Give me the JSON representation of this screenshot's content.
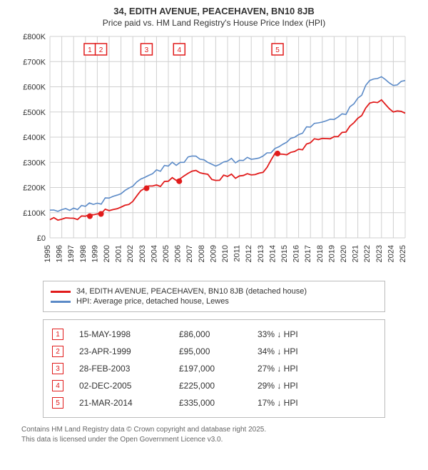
{
  "title": "34, EDITH AVENUE, PEACEHAVEN, BN10 8JB",
  "subtitle": "Price paid vs. HM Land Registry's House Price Index (HPI)",
  "chart": {
    "type": "line",
    "x_years": [
      1995,
      1996,
      1997,
      1998,
      1999,
      2000,
      2001,
      2002,
      2003,
      2004,
      2005,
      2006,
      2007,
      2008,
      2009,
      2010,
      2011,
      2012,
      2013,
      2014,
      2015,
      2016,
      2017,
      2018,
      2019,
      2020,
      2021,
      2022,
      2023,
      2024,
      2025
    ],
    "ylim": [
      0,
      800000
    ],
    "y_ticks": [
      0,
      100000,
      200000,
      300000,
      400000,
      500000,
      600000,
      700000,
      800000
    ],
    "y_tick_labels": [
      "£0",
      "£100K",
      "£200K",
      "£300K",
      "£400K",
      "£500K",
      "£600K",
      "£700K",
      "£800K"
    ],
    "grid_color": "#d0d0d0",
    "background_color": "#ffffff",
    "series_hpi": {
      "label": "HPI: Average price, detached house, Lewes",
      "color": "#5b8ac7",
      "line_width": 1.6,
      "points": [
        [
          1995,
          110000
        ],
        [
          1996,
          112000
        ],
        [
          1997,
          118000
        ],
        [
          1998,
          125000
        ],
        [
          1999,
          138000
        ],
        [
          2000,
          158000
        ],
        [
          2001,
          175000
        ],
        [
          2002,
          205000
        ],
        [
          2003,
          240000
        ],
        [
          2004,
          270000
        ],
        [
          2005,
          285000
        ],
        [
          2006,
          300000
        ],
        [
          2007,
          325000
        ],
        [
          2008,
          310000
        ],
        [
          2009,
          285000
        ],
        [
          2010,
          305000
        ],
        [
          2011,
          308000
        ],
        [
          2012,
          312000
        ],
        [
          2013,
          325000
        ],
        [
          2014,
          355000
        ],
        [
          2015,
          380000
        ],
        [
          2016,
          410000
        ],
        [
          2017,
          440000
        ],
        [
          2018,
          460000
        ],
        [
          2019,
          470000
        ],
        [
          2020,
          490000
        ],
        [
          2021,
          555000
        ],
        [
          2022,
          625000
        ],
        [
          2023,
          640000
        ],
        [
          2024,
          605000
        ],
        [
          2025,
          625000
        ]
      ]
    },
    "series_property": {
      "label": "34, EDITH AVENUE, PEACEHAVEN, BN10 8JB (detached house)",
      "color": "#e11b1b",
      "line_width": 1.8,
      "points": [
        [
          1995,
          72000
        ],
        [
          1996,
          74000
        ],
        [
          1997,
          78000
        ],
        [
          1998,
          86000
        ],
        [
          1999,
          95000
        ],
        [
          2000,
          108000
        ],
        [
          2001,
          122000
        ],
        [
          2002,
          145000
        ],
        [
          2003,
          197000
        ],
        [
          2004,
          210000
        ],
        [
          2005,
          225000
        ],
        [
          2006,
          235000
        ],
        [
          2007,
          265000
        ],
        [
          2008,
          255000
        ],
        [
          2009,
          228000
        ],
        [
          2010,
          244000
        ],
        [
          2011,
          246000
        ],
        [
          2012,
          250000
        ],
        [
          2013,
          260000
        ],
        [
          2014,
          335000
        ],
        [
          2015,
          330000
        ],
        [
          2016,
          352000
        ],
        [
          2017,
          378000
        ],
        [
          2018,
          395000
        ],
        [
          2019,
          402000
        ],
        [
          2020,
          420000
        ],
        [
          2021,
          475000
        ],
        [
          2022,
          535000
        ],
        [
          2023,
          548000
        ],
        [
          2024,
          500000
        ],
        [
          2025,
          495000
        ]
      ]
    },
    "markers": [
      {
        "n": "1",
        "year": 1998.37,
        "price": 86000
      },
      {
        "n": "2",
        "year": 1999.31,
        "price": 95000
      },
      {
        "n": "3",
        "year": 2003.16,
        "price": 197000
      },
      {
        "n": "4",
        "year": 2005.92,
        "price": 225000
      },
      {
        "n": "5",
        "year": 2014.22,
        "price": 335000
      }
    ],
    "marker_box_color": "#e11b1b",
    "marker_dot_color": "#e11b1b"
  },
  "legend": {
    "items": [
      {
        "color": "#e11b1b",
        "label": "34, EDITH AVENUE, PEACEHAVEN, BN10 8JB (detached house)"
      },
      {
        "color": "#5b8ac7",
        "label": "HPI: Average price, detached house, Lewes"
      }
    ]
  },
  "transactions": [
    {
      "n": "1",
      "date": "15-MAY-1998",
      "price": "£86,000",
      "diff": "33% ↓ HPI"
    },
    {
      "n": "2",
      "date": "23-APR-1999",
      "price": "£95,000",
      "diff": "34% ↓ HPI"
    },
    {
      "n": "3",
      "date": "28-FEB-2003",
      "price": "£197,000",
      "diff": "27% ↓ HPI"
    },
    {
      "n": "4",
      "date": "02-DEC-2005",
      "price": "£225,000",
      "diff": "29% ↓ HPI"
    },
    {
      "n": "5",
      "date": "21-MAR-2014",
      "price": "£335,000",
      "diff": "17% ↓ HPI"
    }
  ],
  "tx_marker_color": "#e11b1b",
  "footer_line1": "Contains HM Land Registry data © Crown copyright and database right 2025.",
  "footer_line2": "This data is licensed under the Open Government Licence v3.0."
}
